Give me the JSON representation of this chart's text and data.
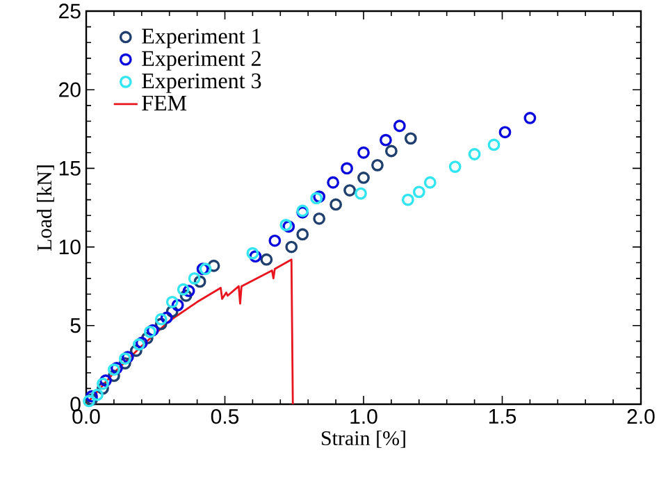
{
  "chart_data": {
    "type": "scatter",
    "xlabel": "Strain [%]",
    "ylabel": "Load [kN]",
    "xlim": [
      0,
      2.0
    ],
    "ylim": [
      0,
      25
    ],
    "xticks": [
      {
        "value": 0,
        "label": "0.0"
      },
      {
        "value": 0.5,
        "label": "0.5"
      },
      {
        "value": 1.0,
        "label": "1.0"
      },
      {
        "value": 1.5,
        "label": "1.5"
      },
      {
        "value": 2.0,
        "label": "2.0"
      }
    ],
    "yticks": [
      0,
      5,
      10,
      15,
      20,
      25
    ],
    "legend": "top left",
    "marker": "circle",
    "series": [
      {
        "name": "Experiment 1",
        "color": "#1f3f6e",
        "x": [
          0.02,
          0.06,
          0.1,
          0.14,
          0.18,
          0.22,
          0.27,
          0.31,
          0.36,
          0.41,
          0.46,
          0.65,
          0.74,
          0.78,
          0.84,
          0.9,
          0.95,
          1.0,
          1.05,
          1.1,
          1.17
        ],
        "values": [
          0.3,
          1.0,
          1.8,
          2.6,
          3.4,
          4.2,
          5.1,
          5.9,
          6.9,
          7.8,
          8.8,
          9.2,
          10.0,
          10.8,
          11.8,
          12.7,
          13.6,
          14.4,
          15.2,
          16.1,
          16.9
        ]
      },
      {
        "name": "Experiment 2",
        "color": "#0a0adc",
        "x": [
          0.02,
          0.07,
          0.11,
          0.15,
          0.2,
          0.24,
          0.29,
          0.33,
          0.37,
          0.42,
          0.61,
          0.68,
          0.73,
          0.78,
          0.84,
          0.89,
          0.94,
          1.0,
          1.08,
          1.13,
          1.51,
          1.6
        ],
        "values": [
          0.5,
          1.5,
          2.3,
          3.0,
          3.9,
          4.7,
          5.5,
          6.3,
          7.2,
          8.6,
          9.4,
          10.4,
          11.3,
          12.2,
          13.2,
          14.1,
          15.0,
          16.0,
          16.8,
          17.7,
          17.3,
          18.2
        ]
      },
      {
        "name": "Experiment 3",
        "color": "#33e5f0",
        "x": [
          0.01,
          0.04,
          0.06,
          0.1,
          0.14,
          0.19,
          0.23,
          0.27,
          0.31,
          0.35,
          0.39,
          0.43,
          0.6,
          0.72,
          0.78,
          0.83,
          0.99,
          1.16,
          1.2,
          1.24,
          1.33,
          1.4,
          1.47
        ],
        "values": [
          0.2,
          0.6,
          1.3,
          2.2,
          2.9,
          3.8,
          4.6,
          5.4,
          6.5,
          7.3,
          8.0,
          8.6,
          9.6,
          11.4,
          12.3,
          13.1,
          13.4,
          13.0,
          13.5,
          14.1,
          15.1,
          15.9,
          16.5
        ]
      },
      {
        "name": "FEM",
        "type": "line",
        "marker": "none",
        "line_style": "solid",
        "color": "#e8141e",
        "x": [
          0,
          0.1,
          0.2,
          0.3,
          0.4,
          0.485,
          0.49,
          0.505,
          0.51,
          0.55,
          0.555,
          0.56,
          0.67,
          0.675,
          0.68,
          0.74,
          0.745
        ],
        "values": [
          0,
          2.0,
          3.7,
          5.3,
          6.5,
          7.4,
          6.7,
          7.1,
          6.9,
          7.5,
          6.4,
          7.5,
          8.5,
          8.0,
          8.6,
          9.2,
          0
        ]
      }
    ]
  }
}
